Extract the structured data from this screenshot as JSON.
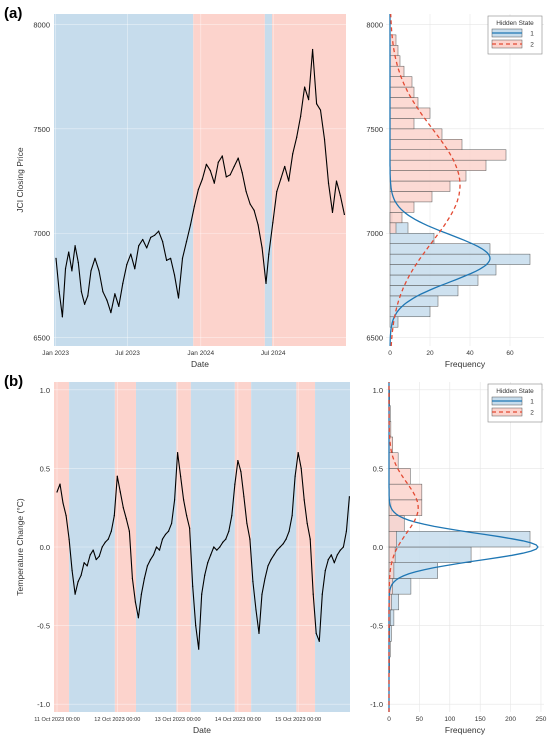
{
  "panels": [
    {
      "label": "(a)"
    },
    {
      "label": "(b)"
    }
  ],
  "colors": {
    "state1_fill": "#c6dcec",
    "state2_fill": "#fcd3cc",
    "state1_line": "#1f77b4",
    "state2_line": "#e34a33",
    "price_line": "#000000",
    "grid": "#e6e6e6"
  },
  "chart_data": [
    {
      "type": "line",
      "panel": "a-main",
      "xlabel": "Date",
      "ylabel": "JCI Closing Price",
      "x_ticks": [
        "Jan 2023",
        "Jul 2023",
        "Jan 2024",
        "Jul 2024"
      ],
      "x_tick_dates": [
        "2023-01-01",
        "2023-07-01",
        "2024-01-01",
        "2024-07-01"
      ],
      "y_ticks": [
        6500,
        7000,
        7500,
        8000
      ],
      "xlim": [
        "2022-12-28",
        "2024-12-31"
      ],
      "ylim": [
        6460,
        8050
      ],
      "grid": true,
      "state_regions": [
        {
          "state": 1,
          "start": "2022-12-28",
          "end": "2023-12-13"
        },
        {
          "state": 2,
          "start": "2023-12-13",
          "end": "2024-06-10"
        },
        {
          "state": 1,
          "start": "2024-06-10",
          "end": "2024-06-28"
        },
        {
          "state": 2,
          "start": "2024-06-28",
          "end": "2024-12-31"
        }
      ],
      "series": [
        {
          "x": [
            "2023-01-02",
            "2023-01-10",
            "2023-01-18",
            "2023-01-26",
            "2023-02-03",
            "2023-02-11",
            "2023-02-19",
            "2023-02-27",
            "2023-03-07",
            "2023-03-15",
            "2023-03-23",
            "2023-03-31",
            "2023-04-10",
            "2023-04-20",
            "2023-04-30",
            "2023-05-10",
            "2023-05-20",
            "2023-05-30",
            "2023-06-09",
            "2023-06-19",
            "2023-06-29",
            "2023-07-09",
            "2023-07-19",
            "2023-07-29",
            "2023-08-08",
            "2023-08-18",
            "2023-08-28",
            "2023-09-07",
            "2023-09-17",
            "2023-09-27",
            "2023-10-07",
            "2023-10-17",
            "2023-10-27",
            "2023-11-06",
            "2023-11-16",
            "2023-11-26",
            "2023-12-06",
            "2023-12-16",
            "2023-12-26",
            "2024-01-05",
            "2024-01-15",
            "2024-01-25",
            "2024-02-04",
            "2024-02-14",
            "2024-02-24",
            "2024-03-05",
            "2024-03-15",
            "2024-03-25",
            "2024-04-04",
            "2024-04-14",
            "2024-04-24",
            "2024-05-04",
            "2024-05-14",
            "2024-05-24",
            "2024-06-03",
            "2024-06-13",
            "2024-06-20",
            "2024-06-30",
            "2024-07-10",
            "2024-07-20",
            "2024-07-30",
            "2024-08-09",
            "2024-08-19",
            "2024-08-29",
            "2024-09-08",
            "2024-09-18",
            "2024-09-28",
            "2024-10-08",
            "2024-10-18",
            "2024-10-28",
            "2024-11-07",
            "2024-11-17",
            "2024-11-27",
            "2024-12-07",
            "2024-12-17",
            "2024-12-27"
          ],
          "y": [
            6880,
            6720,
            6600,
            6830,
            6910,
            6820,
            6940,
            6860,
            6720,
            6660,
            6700,
            6820,
            6880,
            6820,
            6720,
            6680,
            6620,
            6710,
            6650,
            6760,
            6850,
            6900,
            6830,
            6940,
            6970,
            6930,
            6980,
            6990,
            7010,
            6960,
            6870,
            6880,
            6800,
            6690,
            6880,
            6960,
            7040,
            7130,
            7210,
            7260,
            7330,
            7300,
            7240,
            7340,
            7370,
            7270,
            7280,
            7320,
            7360,
            7290,
            7200,
            7140,
            7110,
            7040,
            6930,
            6760,
            6900,
            7050,
            7200,
            7260,
            7320,
            7250,
            7380,
            7460,
            7560,
            7700,
            7640,
            7880,
            7620,
            7590,
            7450,
            7240,
            7100,
            7250,
            7180,
            7090
          ]
        }
      ]
    },
    {
      "type": "bar",
      "panel": "a-hist",
      "orientation": "horizontal",
      "xlabel": "Frequency",
      "ylabel": "",
      "x_ticks": [
        0,
        20,
        40,
        60
      ],
      "y_ticks": [
        6500,
        7000,
        7500,
        8000
      ],
      "xlim": [
        -2,
        77
      ],
      "ylim": [
        6460,
        8050
      ],
      "bin_edges": [
        6550,
        6600,
        6650,
        6700,
        6750,
        6800,
        6850,
        6900,
        6950,
        7000,
        7050,
        7100,
        7150,
        7200,
        7250,
        7300,
        7350,
        7400,
        7450,
        7500,
        7550,
        7600,
        7650,
        7700,
        7750,
        7800,
        7850,
        7900,
        7950
      ],
      "series": [
        {
          "name": "1",
          "counts": [
            4,
            20,
            24,
            34,
            44,
            53,
            70,
            50,
            22,
            9,
            1,
            0,
            0,
            0,
            0,
            0,
            0,
            0,
            0,
            0,
            0,
            0,
            0,
            0,
            0,
            0,
            0,
            0
          ]
        },
        {
          "name": "2",
          "counts": [
            0,
            0,
            0,
            0,
            0,
            0,
            0,
            0,
            0,
            3,
            6,
            12,
            21,
            30,
            38,
            48,
            58,
            36,
            26,
            12,
            20,
            14,
            12,
            11,
            7,
            5,
            4,
            3
          ]
        }
      ],
      "density": [
        {
          "name": "1",
          "mean": 6880,
          "sd": 112,
          "peak": 50
        },
        {
          "name": "2",
          "mean": 7230,
          "sd": 270,
          "peak": 35
        }
      ],
      "legend": {
        "title": "Hidden State",
        "position": "top-right",
        "entries": [
          "1",
          "2"
        ]
      }
    },
    {
      "type": "line",
      "panel": "b-main",
      "xlabel": "Date",
      "ylabel": "Temperature Change (°C)",
      "x_ticks": [
        "11 Oct 2023 00:00",
        "12 Oct 2023 00:00",
        "13 Oct 2023 00:00",
        "14 Oct 2023 00:00",
        "15 Oct 2023 00:00"
      ],
      "x_tick_days": [
        0,
        1,
        2,
        3,
        4
      ],
      "y_ticks": [
        -1.0,
        -0.5,
        0.0,
        0.5,
        1.0
      ],
      "xlim": [
        -0.05,
        4.86
      ],
      "ylim": [
        -1.05,
        1.05
      ],
      "grid": true,
      "state_regions": [
        {
          "state": 2,
          "start": -0.05,
          "end": 0.2
        },
        {
          "state": 1,
          "start": 0.2,
          "end": 0.96
        },
        {
          "state": 2,
          "start": 0.96,
          "end": 1.31
        },
        {
          "state": 1,
          "start": 1.31,
          "end": 1.98
        },
        {
          "state": 2,
          "start": 1.98,
          "end": 2.22
        },
        {
          "state": 1,
          "start": 2.22,
          "end": 2.95
        },
        {
          "state": 2,
          "start": 2.95,
          "end": 3.22
        },
        {
          "state": 1,
          "start": 3.22,
          "end": 3.97
        },
        {
          "state": 2,
          "start": 3.97,
          "end": 4.28
        },
        {
          "state": 1,
          "start": 4.28,
          "end": 4.86
        }
      ],
      "series": [
        {
          "x": [
            0.0,
            0.05,
            0.1,
            0.15,
            0.2,
            0.25,
            0.3,
            0.35,
            0.4,
            0.45,
            0.5,
            0.55,
            0.6,
            0.65,
            0.7,
            0.75,
            0.8,
            0.85,
            0.9,
            0.95,
            1.0,
            1.05,
            1.1,
            1.15,
            1.2,
            1.25,
            1.3,
            1.35,
            1.4,
            1.45,
            1.5,
            1.55,
            1.6,
            1.65,
            1.7,
            1.75,
            1.8,
            1.85,
            1.9,
            1.95,
            2.0,
            2.05,
            2.1,
            2.15,
            2.2,
            2.25,
            2.3,
            2.35,
            2.4,
            2.45,
            2.5,
            2.55,
            2.6,
            2.65,
            2.7,
            2.75,
            2.8,
            2.85,
            2.9,
            2.95,
            3.0,
            3.05,
            3.1,
            3.15,
            3.2,
            3.25,
            3.3,
            3.35,
            3.4,
            3.45,
            3.5,
            3.55,
            3.6,
            3.65,
            3.7,
            3.75,
            3.8,
            3.85,
            3.9,
            3.95,
            4.0,
            4.05,
            4.1,
            4.15,
            4.2,
            4.25,
            4.3,
            4.35,
            4.4,
            4.45,
            4.5,
            4.55,
            4.6,
            4.65,
            4.7,
            4.75,
            4.8,
            4.85
          ],
          "y": [
            0.35,
            0.4,
            0.28,
            0.2,
            0.05,
            -0.15,
            -0.3,
            -0.22,
            -0.18,
            -0.1,
            -0.12,
            -0.05,
            -0.02,
            -0.08,
            -0.06,
            0.0,
            0.03,
            0.05,
            0.1,
            0.2,
            0.45,
            0.35,
            0.25,
            0.18,
            0.1,
            -0.2,
            -0.35,
            -0.45,
            -0.3,
            -0.2,
            -0.12,
            -0.08,
            -0.05,
            0.0,
            -0.02,
            0.05,
            0.08,
            0.1,
            0.15,
            0.3,
            0.6,
            0.45,
            0.3,
            0.2,
            0.12,
            -0.25,
            -0.5,
            -0.65,
            -0.3,
            -0.18,
            -0.1,
            -0.05,
            0.0,
            -0.02,
            0.0,
            0.03,
            0.05,
            0.1,
            0.2,
            0.4,
            0.55,
            0.48,
            0.32,
            0.15,
            0.05,
            -0.22,
            -0.4,
            -0.55,
            -0.3,
            -0.2,
            -0.12,
            -0.08,
            -0.05,
            -0.02,
            0.0,
            0.02,
            0.05,
            0.1,
            0.2,
            0.45,
            0.6,
            0.5,
            0.3,
            0.15,
            0.05,
            -0.3,
            -0.55,
            -0.6,
            -0.3,
            -0.15,
            -0.08,
            -0.05,
            -0.1,
            -0.05,
            -0.02,
            0.0,
            0.1,
            0.32
          ]
        }
      ]
    },
    {
      "type": "bar",
      "panel": "b-hist",
      "orientation": "horizontal",
      "xlabel": "Frequency",
      "ylabel": "",
      "x_ticks": [
        0,
        50,
        100,
        150,
        200,
        250
      ],
      "y_ticks": [
        -1.0,
        -0.5,
        0.0,
        0.5,
        1.0
      ],
      "xlim": [
        -5,
        255
      ],
      "ylim": [
        -1.05,
        1.05
      ],
      "bin_edges": [
        -0.8,
        -0.7,
        -0.6,
        -0.5,
        -0.4,
        -0.3,
        -0.2,
        -0.1,
        0.0,
        0.1,
        0.2,
        0.3,
        0.4,
        0.5,
        0.6,
        0.7,
        0.8,
        0.9,
        1.0
      ],
      "series": [
        {
          "name": "1",
          "counts": [
            1,
            2,
            4,
            8,
            16,
            36,
            80,
            135,
            232,
            25,
            4,
            0,
            0,
            0,
            0,
            0,
            0,
            0
          ]
        },
        {
          "name": "2",
          "counts": [
            0,
            0,
            1,
            2,
            4,
            6,
            8,
            10,
            12,
            25,
            54,
            54,
            35,
            15,
            6,
            3,
            2,
            1
          ]
        }
      ],
      "density": [
        {
          "name": "1",
          "mean": 0.0,
          "sd": 0.085,
          "peak": 245
        },
        {
          "name": "2",
          "mean": 0.25,
          "sd": 0.16,
          "peak": 48
        }
      ],
      "legend": {
        "title": "Hidden State",
        "position": "top-right",
        "entries": [
          "1",
          "2"
        ]
      }
    }
  ]
}
